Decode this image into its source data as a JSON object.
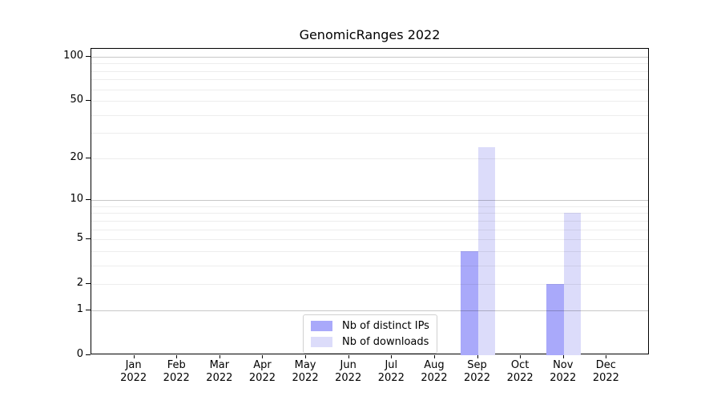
{
  "figure": {
    "title": "GenomicRanges 2022"
  },
  "chart_data": {
    "type": "bar",
    "title": "GenomicRanges 2022",
    "categories": [
      {
        "month": "Jan",
        "year": "2022"
      },
      {
        "month": "Feb",
        "year": "2022"
      },
      {
        "month": "Mar",
        "year": "2022"
      },
      {
        "month": "Apr",
        "year": "2022"
      },
      {
        "month": "May",
        "year": "2022"
      },
      {
        "month": "Jun",
        "year": "2022"
      },
      {
        "month": "Jul",
        "year": "2022"
      },
      {
        "month": "Aug",
        "year": "2022"
      },
      {
        "month": "Sep",
        "year": "2022"
      },
      {
        "month": "Oct",
        "year": "2022"
      },
      {
        "month": "Nov",
        "year": "2022"
      },
      {
        "month": "Dec",
        "year": "2022"
      }
    ],
    "series": [
      {
        "name": "Nb of distinct IPs",
        "color": "#a9a9fa",
        "values": [
          0,
          0,
          0,
          0,
          0,
          0,
          0,
          0,
          4,
          0,
          2,
          0
        ]
      },
      {
        "name": "Nb of downloads",
        "color": "#dcdcfa",
        "values": [
          0,
          0,
          0,
          0,
          0,
          0,
          0,
          0,
          24,
          0,
          8,
          0
        ]
      }
    ],
    "y_axis": {
      "scale": "log1p",
      "tick_labels": [
        0,
        1,
        2,
        5,
        10,
        20,
        50,
        100
      ],
      "major_gridlines": [
        1,
        10,
        100
      ],
      "minor_gridlines": [
        2,
        3,
        4,
        5,
        6,
        7,
        8,
        9,
        20,
        30,
        40,
        50,
        60,
        70,
        80,
        90
      ],
      "range": [
        0,
        113
      ]
    },
    "x_axis": {
      "label_lines": 2
    },
    "legend_position": "lower center",
    "grid": true,
    "colors": {
      "major_grid": "#c8c8c8",
      "minor_grid": "#ededed",
      "axis": "#000000",
      "background": "#ffffff"
    }
  }
}
